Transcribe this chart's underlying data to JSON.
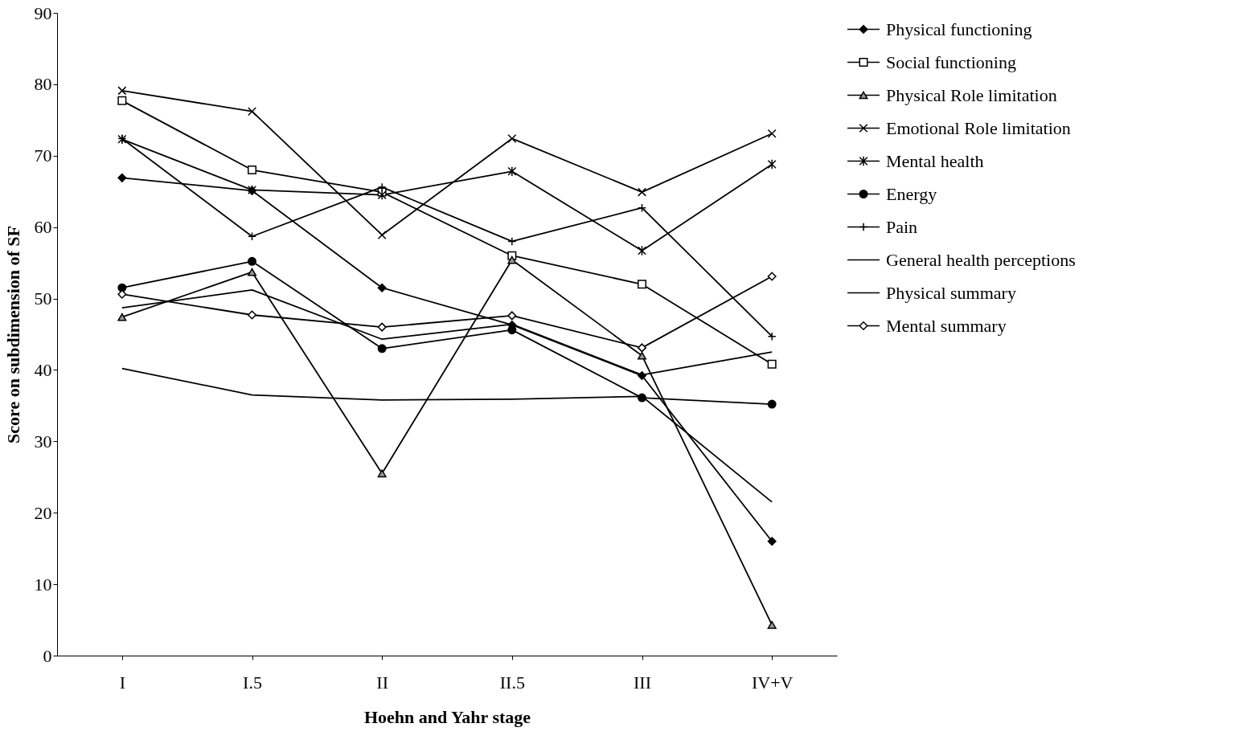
{
  "chart_data": {
    "type": "line",
    "xlabel": "Hoehn and Yahr stage",
    "ylabel": "Score on subdimension of SF",
    "categories": [
      "I",
      "I.5",
      "II",
      "II.5",
      "III",
      "IV+V"
    ],
    "ylim": [
      0,
      90
    ],
    "yticks": [
      0,
      10,
      20,
      30,
      40,
      50,
      60,
      70,
      80,
      90
    ],
    "grid": false,
    "legend": "right",
    "series": [
      {
        "name": "Physical functioning",
        "color": "#000000",
        "marker": "diamond",
        "values": [
          66.9,
          65.1,
          51.5,
          46.3,
          39.2,
          16.0
        ]
      },
      {
        "name": "Social functioning",
        "color": "#000000",
        "marker": "square",
        "values": [
          77.7,
          68.0,
          64.9,
          56.0,
          52.0,
          40.8
        ]
      },
      {
        "name": "Physical Role limitation",
        "color": "#000000",
        "marker": "triangle",
        "values": [
          47.4,
          53.7,
          25.5,
          55.4,
          42.0,
          4.3
        ]
      },
      {
        "name": "Emotional Role limitation",
        "color": "#000000",
        "marker": "cross",
        "values": [
          79.1,
          76.2,
          58.9,
          72.4,
          64.9,
          73.1
        ]
      },
      {
        "name": "Mental health",
        "color": "#000000",
        "marker": "cross",
        "values": [
          72.3,
          65.2,
          64.5,
          67.8,
          56.7,
          68.8
        ]
      },
      {
        "name": "Energy",
        "color": "#000000",
        "marker": "circle",
        "values": [
          51.5,
          55.2,
          43.0,
          45.6,
          36.1,
          35.2
        ]
      },
      {
        "name": "Pain",
        "color": "#000000",
        "marker": "cross",
        "values": [
          72.4,
          58.7,
          65.6,
          58.0,
          62.7,
          44.7
        ]
      },
      {
        "name": "General health perceptions",
        "color": "#000000",
        "marker": "none",
        "values": [
          48.7,
          51.2,
          44.3,
          46.4,
          39.3,
          42.5
        ]
      },
      {
        "name": "Physical summary",
        "color": "#000000",
        "marker": "none",
        "values": [
          40.2,
          36.5,
          35.8,
          35.9,
          36.3,
          21.5
        ]
      },
      {
        "name": "Mental summary",
        "color": "#000000",
        "marker": "diamond",
        "values": [
          50.6,
          47.7,
          46.0,
          47.6,
          43.1,
          53.1
        ]
      }
    ]
  }
}
